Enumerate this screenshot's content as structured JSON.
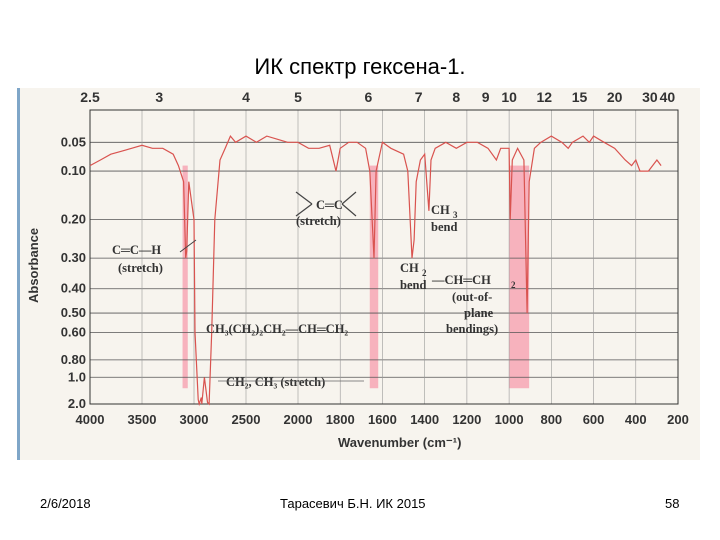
{
  "slide": {
    "title": "ИК спектр гексена-1.",
    "footer_date": "2/6/2018",
    "footer_author": "Тарасевич Б.Н. ИК 2015",
    "footer_page": "58"
  },
  "chart_data": {
    "type": "line",
    "xlabel": "Wavenumber (cm⁻¹)",
    "ylabel": "Absorbance",
    "xlim": [
      4000,
      200
    ],
    "ylim": [
      0.0,
      2.0
    ],
    "x_ticks_bottom": [
      "4000",
      "3500",
      "3000",
      "2500",
      "2000",
      "1800",
      "1600",
      "1400",
      "1200",
      "1000",
      "800",
      "600",
      "400",
      "200"
    ],
    "x_ticks_top": [
      "2.5",
      "3",
      "4",
      "5",
      "6",
      "7",
      "8",
      "9",
      "10",
      "12",
      "15",
      "20",
      "30",
      "40"
    ],
    "y_ticks": [
      "0.05",
      "0.10",
      "0.20",
      "0.30",
      "0.40",
      "0.50",
      "0.60",
      "0.80",
      "1.0",
      "2.0"
    ],
    "annotations": {
      "cc_stretch_1": "C═C",
      "cc_stretch_2": "(stretch)",
      "ch3_bend_1": "CH",
      "ch3_bend_sub": "3",
      "ch3_bend_2": "bend",
      "ch2_bend_1": "CH",
      "ch2_bend_sub": "2",
      "ch2_bend_2": "bend",
      "vinyl_ch_1": "C═C—H",
      "vinyl_ch_2": "(stretch)",
      "oop_1": "—CH═CH",
      "oop_sub": "2",
      "oop_2": "(out-of-",
      "oop_3": "plane",
      "oop_4": "bendings)",
      "structure": "CH₃(CH₂)₂CH₂—CH═CH₂",
      "stretch_alkyl": "CH₂, CH₃ (stretch)"
    },
    "series": [
      {
        "color": "#d9534f",
        "points": [
          [
            4000,
            0.09
          ],
          [
            3900,
            0.08
          ],
          [
            3800,
            0.07
          ],
          [
            3700,
            0.065
          ],
          [
            3600,
            0.06
          ],
          [
            3500,
            0.055
          ],
          [
            3400,
            0.06
          ],
          [
            3300,
            0.06
          ],
          [
            3200,
            0.07
          ],
          [
            3150,
            0.09
          ],
          [
            3100,
            0.12
          ],
          [
            3080,
            0.3
          ],
          [
            3070,
            0.28
          ],
          [
            3050,
            0.12
          ],
          [
            3000,
            0.2
          ],
          [
            2990,
            0.6
          ],
          [
            2960,
            1.6
          ],
          [
            2950,
            2.0
          ],
          [
            2930,
            1.5
          ],
          [
            2925,
            2.0
          ],
          [
            2900,
            1.0
          ],
          [
            2870,
            1.8
          ],
          [
            2855,
            2.0
          ],
          [
            2830,
            0.6
          ],
          [
            2800,
            0.2
          ],
          [
            2750,
            0.08
          ],
          [
            2700,
            0.06
          ],
          [
            2650,
            0.04
          ],
          [
            2600,
            0.05
          ],
          [
            2500,
            0.04
          ],
          [
            2400,
            0.05
          ],
          [
            2300,
            0.04
          ],
          [
            2200,
            0.045
          ],
          [
            2100,
            0.05
          ],
          [
            2000,
            0.05
          ],
          [
            1950,
            0.06
          ],
          [
            1900,
            0.06
          ],
          [
            1850,
            0.055
          ],
          [
            1820,
            0.1
          ],
          [
            1800,
            0.06
          ],
          [
            1760,
            0.05
          ],
          [
            1720,
            0.05
          ],
          [
            1680,
            0.06
          ],
          [
            1660,
            0.1
          ],
          [
            1640,
            0.3
          ],
          [
            1630,
            0.1
          ],
          [
            1600,
            0.05
          ],
          [
            1560,
            0.06
          ],
          [
            1500,
            0.07
          ],
          [
            1480,
            0.1
          ],
          [
            1460,
            0.3
          ],
          [
            1450,
            0.25
          ],
          [
            1440,
            0.12
          ],
          [
            1420,
            0.08
          ],
          [
            1400,
            0.07
          ],
          [
            1380,
            0.18
          ],
          [
            1370,
            0.08
          ],
          [
            1350,
            0.06
          ],
          [
            1300,
            0.05
          ],
          [
            1250,
            0.06
          ],
          [
            1200,
            0.05
          ],
          [
            1150,
            0.05
          ],
          [
            1100,
            0.06
          ],
          [
            1060,
            0.08
          ],
          [
            1040,
            0.06
          ],
          [
            1000,
            0.06
          ],
          [
            995,
            0.2
          ],
          [
            985,
            0.08
          ],
          [
            960,
            0.06
          ],
          [
            930,
            0.08
          ],
          [
            915,
            0.5
          ],
          [
            905,
            0.12
          ],
          [
            880,
            0.06
          ],
          [
            850,
            0.05
          ],
          [
            800,
            0.04
          ],
          [
            750,
            0.05
          ],
          [
            720,
            0.06
          ],
          [
            700,
            0.05
          ],
          [
            650,
            0.04
          ],
          [
            620,
            0.05
          ],
          [
            600,
            0.04
          ],
          [
            550,
            0.05
          ],
          [
            500,
            0.06
          ],
          [
            450,
            0.08
          ],
          [
            420,
            0.09
          ],
          [
            400,
            0.08
          ],
          [
            380,
            0.1
          ],
          [
            340,
            0.1
          ],
          [
            300,
            0.08
          ],
          [
            280,
            0.09
          ]
        ]
      }
    ],
    "highlighted_bands": [
      {
        "from": 3110,
        "to": 3060,
        "color": "#f7a6b4"
      },
      {
        "from": 1660,
        "to": 1620,
        "color": "#f7a6b4"
      },
      {
        "from": 1000,
        "to": 905,
        "color": "#f7a6b4"
      }
    ],
    "grid": true
  }
}
